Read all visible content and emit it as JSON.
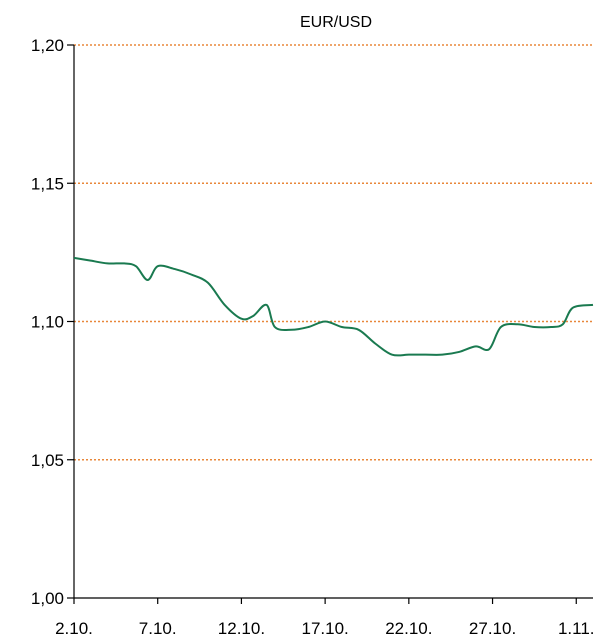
{
  "chart_data": {
    "type": "line",
    "title": "EUR/USD",
    "xlabel": "",
    "ylabel": "",
    "ylim": [
      1.0,
      1.2
    ],
    "yticks": [
      "1,00",
      "1,05",
      "1,10",
      "1,15",
      "1,20"
    ],
    "ytick_values": [
      1.0,
      1.05,
      1.1,
      1.15,
      1.2
    ],
    "xlim": [
      2,
      33
    ],
    "xticks": [
      "2.10.",
      "7.10.",
      "12.10.",
      "17.10.",
      "22.10.",
      "27.10.",
      "1.11."
    ],
    "xtick_values": [
      2,
      7,
      12,
      17,
      22,
      27,
      32
    ],
    "grid": "horizontal dotted",
    "colors": {
      "line": "#1a7a50",
      "grid": "#e8873a",
      "axis": "#000000"
    },
    "series": [
      {
        "values": [
          [
            2,
            1.123
          ],
          [
            3,
            1.122
          ],
          [
            4,
            1.121
          ],
          [
            5,
            1.121
          ],
          [
            5.7,
            1.12
          ],
          [
            6.4,
            1.115
          ],
          [
            7,
            1.12
          ],
          [
            8,
            1.119
          ],
          [
            9,
            1.117
          ],
          [
            10,
            1.114
          ],
          [
            11,
            1.106
          ],
          [
            12,
            1.101
          ],
          [
            12.7,
            1.102
          ],
          [
            13.5,
            1.106
          ],
          [
            14,
            1.098
          ],
          [
            15,
            1.097
          ],
          [
            16,
            1.098
          ],
          [
            17,
            1.1
          ],
          [
            18,
            1.098
          ],
          [
            19,
            1.097
          ],
          [
            20,
            1.092
          ],
          [
            21,
            1.088
          ],
          [
            22,
            1.088
          ],
          [
            23,
            1.088
          ],
          [
            24,
            1.088
          ],
          [
            25,
            1.089
          ],
          [
            26,
            1.091
          ],
          [
            26.8,
            1.09
          ],
          [
            27.5,
            1.098
          ],
          [
            28.5,
            1.099
          ],
          [
            29.5,
            1.098
          ],
          [
            30.5,
            1.098
          ],
          [
            31.2,
            1.099
          ],
          [
            31.8,
            1.105
          ],
          [
            33,
            1.106
          ]
        ]
      }
    ]
  }
}
